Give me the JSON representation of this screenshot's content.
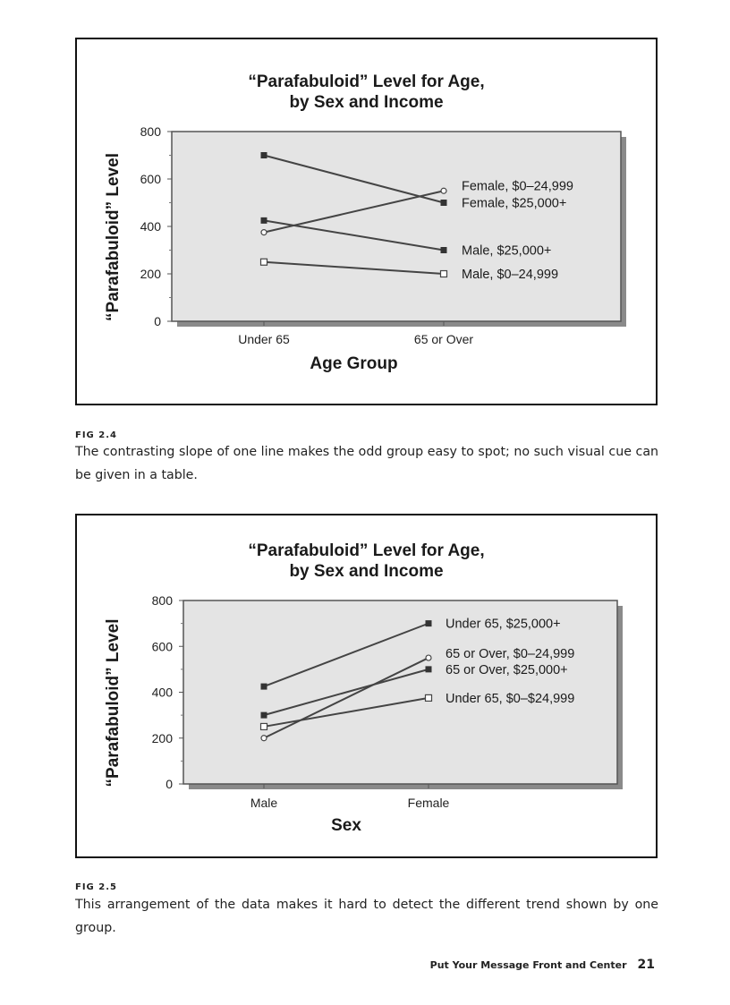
{
  "chart_data": [
    {
      "type": "line",
      "title_line1": "“Parafabuloid” Level for Age,",
      "title_line2": "by Sex and Income",
      "xlabel": "Age Group",
      "ylabel": "“Parafabuloid” Level",
      "categories": [
        "Under 65",
        "65 or Over"
      ],
      "ylim": [
        0,
        800
      ],
      "yticks": [
        0,
        200,
        400,
        600,
        800
      ],
      "grid": false,
      "legend": "inline-right",
      "series": [
        {
          "name": "Female, $0–24,999",
          "values": [
            375,
            550
          ],
          "marker": "open-circle"
        },
        {
          "name": "Female, $25,000+",
          "values": [
            700,
            500
          ],
          "marker": "filled-square"
        },
        {
          "name": "Male, $25,000+",
          "values": [
            425,
            300
          ],
          "marker": "filled-square"
        },
        {
          "name": "Male, $0–24,999",
          "values": [
            250,
            200
          ],
          "marker": "open-square"
        }
      ],
      "colors": {
        "plot_bg": "#e4e4e4",
        "line": "#444444"
      }
    },
    {
      "type": "line",
      "title_line1": "“Parafabuloid” Level for Age,",
      "title_line2": "by Sex and Income",
      "xlabel": "Sex",
      "ylabel": "“Parafabuloid” Level",
      "categories": [
        "Male",
        "Female"
      ],
      "ylim": [
        0,
        800
      ],
      "yticks": [
        0,
        200,
        400,
        600,
        800
      ],
      "grid": false,
      "legend": "inline-right",
      "series": [
        {
          "name": "Under 65, $25,000+",
          "values": [
            425,
            700
          ],
          "marker": "filled-square"
        },
        {
          "name": "65 or Over, $0–24,999",
          "values": [
            200,
            550
          ],
          "marker": "open-circle"
        },
        {
          "name": "65 or Over, $25,000+",
          "values": [
            300,
            500
          ],
          "marker": "filled-square"
        },
        {
          "name": "Under 65, $0–$24,999",
          "values": [
            250,
            375
          ],
          "marker": "open-square"
        }
      ],
      "colors": {
        "plot_bg": "#e4e4e4",
        "line": "#444444"
      }
    }
  ],
  "figures": [
    {
      "label": "FIG 2.4",
      "caption": "The  contrasting slope of one line makes the odd group easy to spot; no such visual cue can be given in a table."
    },
    {
      "label": "FIG 2.5",
      "caption": "This  arrangement of the data makes it hard to detect the different trend shown by one group."
    }
  ],
  "footer": {
    "running_head": "Put Your Message Front and Center",
    "page_number": "21"
  }
}
